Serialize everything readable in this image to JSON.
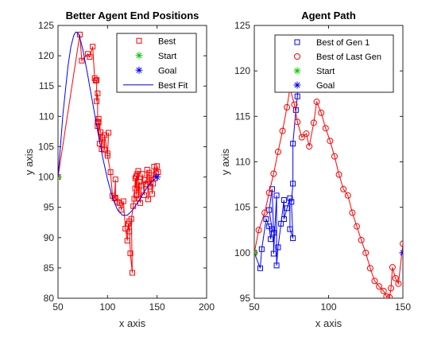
{
  "chart_data": [
    {
      "type": "scatter",
      "title": "Better Agent End Positions",
      "xlabel": "x axis",
      "ylabel": "y axis",
      "xlim": [
        50,
        200
      ],
      "ylim": [
        80,
        125
      ],
      "xticks": [
        50,
        100,
        150,
        200
      ],
      "yticks": [
        80,
        85,
        90,
        95,
        100,
        105,
        110,
        115,
        120,
        125
      ],
      "grid": false,
      "legend": {
        "placement": "top-right",
        "entries": [
          {
            "label": "Best",
            "marker": "square",
            "color": "#ff0000"
          },
          {
            "label": "Start",
            "marker": "asterisk",
            "color": "#00cc00"
          },
          {
            "label": "Goal",
            "marker": "asterisk",
            "color": "#0000ff"
          },
          {
            "label": "Best Fit",
            "marker": "line",
            "color": "#0000ff"
          }
        ]
      },
      "series": [
        {
          "name": "Best",
          "color": "#ff0000",
          "style": "line+square",
          "x": [
            50,
            72,
            74,
            80,
            82,
            85,
            87,
            88,
            89,
            89,
            90,
            90,
            91,
            90,
            92,
            91,
            93,
            94,
            95,
            97,
            97,
            100,
            101,
            100,
            103,
            105,
            107,
            108,
            108,
            110,
            112,
            114,
            116,
            118,
            120,
            121,
            122,
            122,
            123,
            125,
            124,
            126,
            127,
            128,
            128,
            129,
            129,
            130,
            131,
            131,
            132,
            133,
            134,
            135,
            137,
            138,
            139,
            140,
            141,
            142,
            143,
            144,
            145,
            146,
            147,
            148,
            149,
            150,
            151
          ],
          "y": [
            100,
            123.5,
            119.2,
            120.3,
            119.8,
            121.5,
            116.3,
            115.9,
            116.0,
            112.5,
            113.8,
            109.1,
            109.6,
            108.4,
            105.5,
            109.0,
            107.4,
            104.6,
            106.5,
            104.5,
            106.9,
            103.9,
            107.3,
            103.5,
            100.8,
            96.9,
            96.5,
            99.6,
            96.6,
            95.9,
            95.7,
            94.6,
            96.0,
            91.5,
            89.5,
            92.3,
            91.0,
            92.7,
            87.4,
            84.2,
            93.1,
            95.2,
            96.4,
            99.8,
            98.1,
            100.1,
            97.0,
            100.5,
            101.0,
            96.4,
            99.2,
            95.7,
            98.6,
            100.5,
            97.0,
            99.5,
            98.8,
            101.2,
            96.3,
            100.7,
            98.4,
            100.3,
            97.2,
            98.9,
            101.7,
            99.8,
            100.6,
            101.8,
            100.8
          ]
        },
        {
          "name": "Start",
          "color": "#00cc00",
          "marker": "asterisk",
          "x": [
            50
          ],
          "y": [
            100
          ]
        },
        {
          "name": "Goal",
          "color": "#0000ff",
          "marker": "asterisk",
          "x": [
            150
          ],
          "y": [
            100
          ]
        },
        {
          "name": "Best Fit",
          "color": "#0000ff",
          "style": "line",
          "x": [
            50,
            55,
            60,
            63,
            66,
            68,
            70,
            72,
            75,
            80,
            85,
            90,
            95,
            100,
            105,
            110,
            115,
            120,
            125,
            130,
            135,
            140,
            145,
            150
          ],
          "y": [
            100,
            110.4,
            118.2,
            121.5,
            123.4,
            123.9,
            123.8,
            123.0,
            121.1,
            116.8,
            112.2,
            107.6,
            103.3,
            99.6,
            96.6,
            94.6,
            93.7,
            93.7,
            94.5,
            95.7,
            97.0,
            98.3,
            99.3,
            100
          ]
        }
      ]
    },
    {
      "type": "line",
      "title": "Agent Path",
      "xlabel": "x axis",
      "ylabel": "y axis",
      "xlim": [
        50,
        150
      ],
      "ylim": [
        95,
        125
      ],
      "xticks": [
        50,
        100,
        150
      ],
      "yticks": [
        95,
        100,
        105,
        110,
        115,
        120,
        125
      ],
      "grid": false,
      "legend": {
        "placement": "top-right",
        "entries": [
          {
            "label": "Best of Gen 1",
            "marker": "square",
            "color": "#0000ff"
          },
          {
            "label": "Best of Last Gen",
            "marker": "circle",
            "color": "#ff0000"
          },
          {
            "label": "Start",
            "marker": "asterisk",
            "color": "#00cc00"
          },
          {
            "label": "Goal",
            "marker": "asterisk",
            "color": "#0000ff"
          }
        ]
      },
      "series": [
        {
          "name": "Best of Gen 1",
          "color": "#0000ff",
          "style": "line+square",
          "x": [
            50,
            54,
            55,
            58,
            60,
            61,
            62,
            60,
            62,
            63,
            63,
            65,
            65,
            66,
            68,
            70,
            70,
            72,
            74,
            74,
            76,
            75,
            76,
            76,
            78,
            79,
            80,
            81,
            82
          ],
          "y": [
            100,
            98.3,
            100.4,
            103.7,
            102.9,
            101.5,
            102.6,
            104.7,
            107.0,
            102.2,
            99.9,
            106.3,
            98.6,
            100.6,
            103.2,
            105.8,
            103.7,
            104.9,
            106.0,
            102.6,
            101.6,
            105.6,
            107.6,
            112.0,
            115.7,
            117.2,
            121.6,
            123.5,
            123.0
          ]
        },
        {
          "name": "Best of Last Gen",
          "color": "#ff0000",
          "style": "line+circle",
          "x": [
            50,
            53,
            57,
            60,
            63,
            66,
            69,
            72,
            74,
            77,
            79,
            82,
            85,
            87,
            90,
            92,
            95,
            98,
            101,
            104,
            107,
            110,
            113,
            116,
            119,
            122,
            125,
            128,
            131,
            134,
            137,
            139,
            141,
            142,
            143,
            145,
            147,
            150
          ],
          "y": [
            100,
            102.5,
            104.4,
            106.6,
            108.7,
            111.1,
            113.4,
            116.0,
            118.1,
            116.3,
            114.4,
            112.7,
            113.1,
            111.7,
            114.3,
            116.6,
            115.4,
            113.7,
            112.3,
            110.6,
            108.6,
            107.0,
            106.3,
            104.4,
            102.9,
            101.4,
            100.0,
            98.3,
            96.9,
            96.3,
            95.8,
            95.2,
            95.1,
            96.1,
            98.4,
            97.2,
            96.6,
            101.0
          ]
        },
        {
          "name": "Start",
          "color": "#00cc00",
          "marker": "asterisk",
          "x": [
            50
          ],
          "y": [
            100
          ]
        },
        {
          "name": "Goal",
          "color": "#0000ff",
          "marker": "asterisk",
          "x": [
            150
          ],
          "y": [
            100
          ]
        }
      ]
    }
  ]
}
